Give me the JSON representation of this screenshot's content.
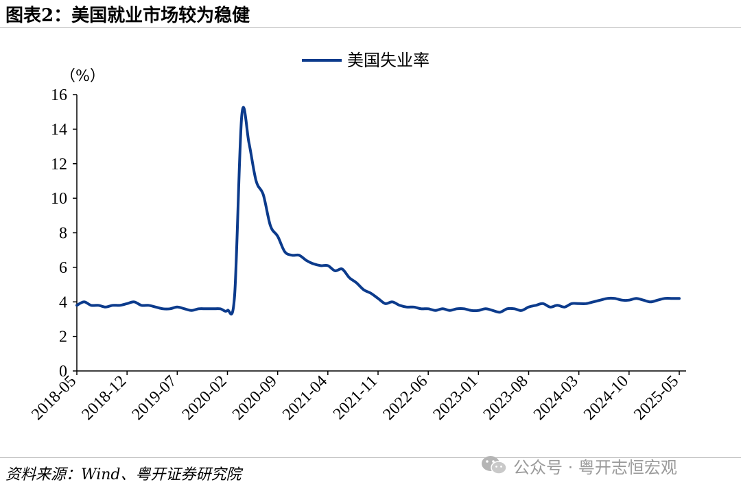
{
  "header": {
    "title": "图表2：美国就业市场较为稳健"
  },
  "footer": {
    "source": "资料来源：Wind、粤开证券研究院"
  },
  "watermark": {
    "text": "公众号 · 粤开志恒宏观",
    "icon": "wechat-icon"
  },
  "colors": {
    "series": "#0c3b8c",
    "axis": "#000000"
  },
  "chart_data": {
    "type": "line",
    "title": "",
    "ylabel": "（%）",
    "ylim": [
      0,
      16
    ],
    "yticks": [
      0,
      2,
      4,
      6,
      8,
      10,
      12,
      14,
      16
    ],
    "grid": false,
    "legend_position": "top-center",
    "xtick_labels": [
      "2018-05",
      "2018-12",
      "2019-07",
      "2020-02",
      "2020-09",
      "2021-04",
      "2021-11",
      "2022-06",
      "2023-01",
      "2023-08",
      "2024-03",
      "2024-10",
      "2025-05"
    ],
    "series": [
      {
        "name": "美国失业率",
        "x": [
          "2018-05",
          "2018-06",
          "2018-07",
          "2018-08",
          "2018-09",
          "2018-10",
          "2018-11",
          "2018-12",
          "2019-01",
          "2019-02",
          "2019-03",
          "2019-04",
          "2019-05",
          "2019-06",
          "2019-07",
          "2019-08",
          "2019-09",
          "2019-10",
          "2019-11",
          "2019-12",
          "2020-01",
          "2020-02",
          "2020-03",
          "2020-04",
          "2020-05",
          "2020-06",
          "2020-07",
          "2020-08",
          "2020-09",
          "2020-10",
          "2020-11",
          "2020-12",
          "2021-01",
          "2021-02",
          "2021-03",
          "2021-04",
          "2021-05",
          "2021-06",
          "2021-07",
          "2021-08",
          "2021-09",
          "2021-10",
          "2021-11",
          "2021-12",
          "2022-01",
          "2022-02",
          "2022-03",
          "2022-04",
          "2022-05",
          "2022-06",
          "2022-07",
          "2022-08",
          "2022-09",
          "2022-10",
          "2022-11",
          "2022-12",
          "2023-01",
          "2023-02",
          "2023-03",
          "2023-04",
          "2023-05",
          "2023-06",
          "2023-07",
          "2023-08",
          "2023-09",
          "2023-10",
          "2023-11",
          "2023-12",
          "2024-01",
          "2024-02",
          "2024-03",
          "2024-04",
          "2024-05",
          "2024-06",
          "2024-07",
          "2024-08",
          "2024-09",
          "2024-10",
          "2024-11",
          "2024-12",
          "2025-01",
          "2025-02",
          "2025-03",
          "2025-04",
          "2025-05"
        ],
        "values": [
          3.8,
          4.0,
          3.8,
          3.8,
          3.7,
          3.8,
          3.8,
          3.9,
          4.0,
          3.8,
          3.8,
          3.7,
          3.6,
          3.6,
          3.7,
          3.6,
          3.5,
          3.6,
          3.6,
          3.6,
          3.6,
          3.5,
          4.4,
          14.8,
          13.2,
          11.0,
          10.2,
          8.4,
          7.8,
          6.9,
          6.7,
          6.7,
          6.4,
          6.2,
          6.1,
          6.1,
          5.8,
          5.9,
          5.4,
          5.1,
          4.7,
          4.5,
          4.2,
          3.9,
          4.0,
          3.8,
          3.7,
          3.7,
          3.6,
          3.6,
          3.5,
          3.6,
          3.5,
          3.6,
          3.6,
          3.5,
          3.5,
          3.6,
          3.5,
          3.4,
          3.6,
          3.6,
          3.5,
          3.7,
          3.8,
          3.9,
          3.7,
          3.8,
          3.7,
          3.9,
          3.9,
          3.9,
          4.0,
          4.1,
          4.2,
          4.2,
          4.1,
          4.1,
          4.2,
          4.1,
          4.0,
          4.1,
          4.2,
          4.2,
          4.2
        ]
      }
    ]
  }
}
